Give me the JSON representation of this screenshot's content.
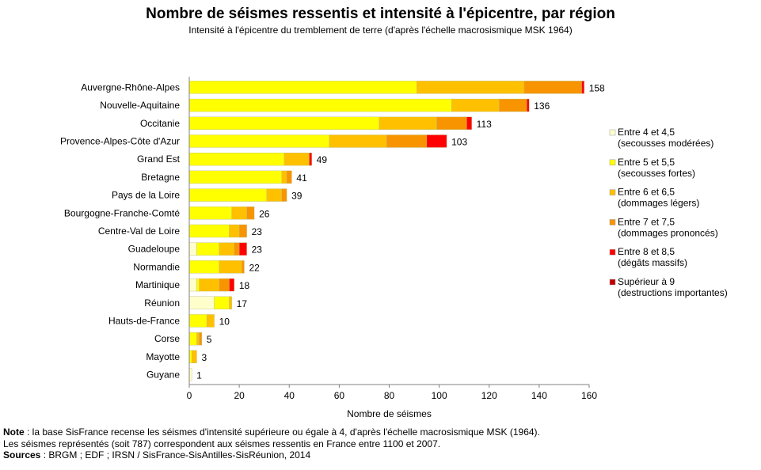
{
  "chart_data": {
    "type": "bar",
    "orientation": "horizontal",
    "stacked": true,
    "title": "Nombre de séismes ressentis et intensité à l'épicentre, par région",
    "subtitle": "Intensité à l'épicentre du tremblement de terre (d'après  l'échelle macrosismique MSK 1964)",
    "xlabel": "Nombre de séismes",
    "xlim": [
      0,
      160
    ],
    "xticks": [
      0,
      20,
      40,
      60,
      80,
      100,
      120,
      140,
      160
    ],
    "grid": false,
    "legend_position": "right",
    "categories": [
      "Auvergne-Rhône-Alpes",
      "Nouvelle-Aquitaine",
      "Occitanie",
      "Provence-Alpes-Côte d'Azur",
      "Grand Est",
      "Bretagne",
      "Pays de la Loire",
      "Bourgogne-Franche-Comté",
      "Centre-Val de Loire",
      "Guadeloupe",
      "Normandie",
      "Martinique",
      "Réunion",
      "Hauts-de-France",
      "Corse",
      "Mayotte",
      "Guyane"
    ],
    "totals": [
      158,
      136,
      113,
      103,
      49,
      41,
      39,
      26,
      23,
      23,
      22,
      18,
      17,
      10,
      5,
      3,
      1
    ],
    "series": [
      {
        "name": "Entre 4 et 4,5",
        "name2": "(secousses modérées)",
        "color": "#ffffcc",
        "values": [
          0,
          0,
          0,
          0,
          0,
          0,
          0,
          0,
          0,
          3,
          0,
          3,
          10,
          0,
          0,
          0,
          1
        ]
      },
      {
        "name": "Entre 5 et 5,5",
        "name2": "(secousses fortes)",
        "color": "#ffff00",
        "values": [
          91,
          105,
          76,
          56,
          38,
          37,
          31,
          17,
          16,
          9,
          12,
          1,
          6,
          7,
          3,
          1,
          0
        ]
      },
      {
        "name": "Entre 6 et 6,5",
        "name2": "(dommages légers)",
        "color": "#ffc000",
        "values": [
          43,
          19,
          23,
          23,
          10,
          2,
          6,
          6,
          4,
          6,
          9,
          8,
          1,
          3,
          1,
          2,
          0
        ]
      },
      {
        "name": "Entre 7 et 7,5",
        "name2": "(dommages prononcés)",
        "color": "#f79400",
        "values": [
          23,
          11,
          12,
          16,
          0,
          2,
          2,
          3,
          3,
          2,
          1,
          4,
          0,
          0,
          1,
          0,
          0
        ]
      },
      {
        "name": "Entre 8 et 8,5",
        "name2": "(dégâts massifs)",
        "color": "#ff0000",
        "values": [
          1,
          1,
          2,
          8,
          1,
          0,
          0,
          0,
          0,
          3,
          0,
          2,
          0,
          0,
          0,
          0,
          0
        ]
      },
      {
        "name": "Supérieur à 9",
        "name2": "(destructions importantes)",
        "color": "#c00000",
        "values": [
          0,
          0,
          0,
          0,
          0,
          0,
          0,
          0,
          0,
          0,
          0,
          0,
          0,
          0,
          0,
          0,
          0
        ]
      }
    ]
  },
  "notes": {
    "note_label": "Note",
    "note_text": " : la base SisFrance recense les séismes d'intensité supérieure  ou égale à 4, d'après l'échelle macrosismique MSK (1964).",
    "line2": "Les séismes représentés  (soit 787) correspondent  aux séismes ressentis en France entre 1100 et 2007.",
    "sources_label": "Sources",
    "sources_text": " : BRGM ; EDF ; IRSN / SisFrance-SisAntilles-SisRéunion,  2014"
  }
}
